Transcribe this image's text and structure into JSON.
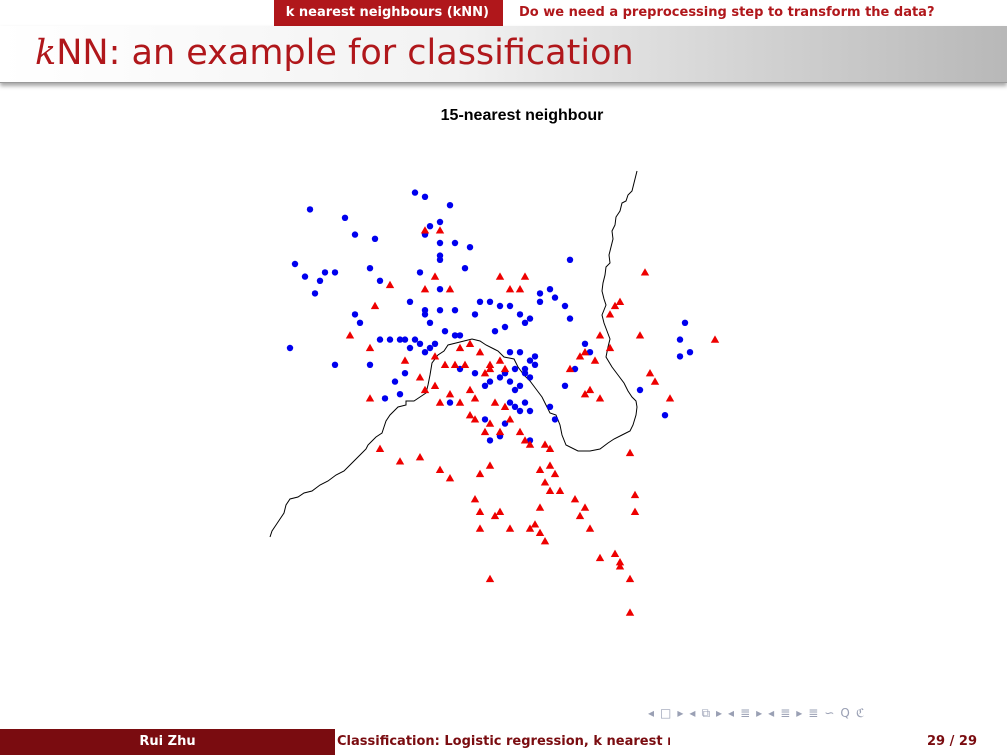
{
  "nav": {
    "section_left": "k nearest neighbours (kNN)",
    "section_right": "Do we need a preprocessing step to transform the data?"
  },
  "slide": {
    "title_math": "k",
    "title_rest": "NN: an example for classification"
  },
  "footer": {
    "author": "Rui Zhu",
    "short_title": "Classification: Logistic regression, k nearest neighbours and linear discriminant analysis",
    "page": "29 / 29"
  },
  "nav_symbols": [
    "◂",
    "□",
    "▸",
    "◂",
    "⧉",
    "▸",
    "◂",
    "≣",
    "▸",
    "◂",
    "≣",
    "▸",
    "≣",
    "∽",
    "Q",
    "ℭ"
  ],
  "colors": {
    "accent": "#b0171b",
    "footer_dark": "#7a0c10",
    "class_circle": "#0000ee",
    "class_triangle": "#ee0000",
    "boundary": "#000000"
  },
  "chart_data": {
    "type": "scatter",
    "title": "15-nearest neighbour",
    "xlabel": "",
    "ylabel": "",
    "axes_shown": false,
    "grid": false,
    "xlim": [
      0,
      100
    ],
    "ylim": [
      0,
      100
    ],
    "series": [
      {
        "marker": "circle",
        "color": "#0000ee",
        "points": [
          [
            8,
            93
          ],
          [
            15,
            91
          ],
          [
            17,
            87
          ],
          [
            21,
            86
          ],
          [
            5,
            80
          ],
          [
            7,
            77
          ],
          [
            10,
            76
          ],
          [
            11,
            78
          ],
          [
            9,
            73
          ],
          [
            13,
            78
          ],
          [
            20,
            79
          ],
          [
            22,
            76
          ],
          [
            4,
            60
          ],
          [
            13,
            56
          ],
          [
            29,
            97
          ],
          [
            31,
            96
          ],
          [
            36,
            94
          ],
          [
            32,
            89
          ],
          [
            34,
            90
          ],
          [
            31,
            87
          ],
          [
            37,
            85
          ],
          [
            40,
            84
          ],
          [
            34,
            85
          ],
          [
            34,
            82
          ],
          [
            30,
            78
          ],
          [
            34,
            81
          ],
          [
            39,
            79
          ],
          [
            34,
            74
          ],
          [
            28,
            71
          ],
          [
            31,
            69
          ],
          [
            31,
            68
          ],
          [
            32,
            66
          ],
          [
            34,
            69
          ],
          [
            37,
            69
          ],
          [
            41,
            68
          ],
          [
            35,
            64
          ],
          [
            37,
            63
          ],
          [
            38,
            63
          ],
          [
            27,
            62
          ],
          [
            29,
            62
          ],
          [
            30,
            61
          ],
          [
            28,
            60
          ],
          [
            31,
            59
          ],
          [
            32,
            60
          ],
          [
            33,
            61
          ],
          [
            26,
            62
          ],
          [
            24,
            62
          ],
          [
            22,
            62
          ],
          [
            18,
            66
          ],
          [
            17,
            68
          ],
          [
            20,
            56
          ],
          [
            42,
            71
          ],
          [
            44,
            71
          ],
          [
            46,
            70
          ],
          [
            50,
            68
          ],
          [
            48,
            70
          ],
          [
            54,
            71
          ],
          [
            54,
            73
          ],
          [
            56,
            74
          ],
          [
            59,
            70
          ],
          [
            57,
            72
          ],
          [
            52,
            67
          ],
          [
            51,
            66
          ],
          [
            47,
            65
          ],
          [
            45,
            64
          ],
          [
            48,
            59
          ],
          [
            50,
            59
          ],
          [
            52,
            57
          ],
          [
            53,
            58
          ],
          [
            51,
            55
          ],
          [
            53,
            56
          ],
          [
            51,
            54
          ],
          [
            49,
            55
          ],
          [
            47,
            54
          ],
          [
            46,
            53
          ],
          [
            48,
            52
          ],
          [
            52,
            53
          ],
          [
            49,
            50
          ],
          [
            50,
            51
          ],
          [
            38,
            55
          ],
          [
            41,
            54
          ],
          [
            43,
            51
          ],
          [
            44,
            52
          ],
          [
            48,
            47
          ],
          [
            49,
            46
          ],
          [
            50,
            45
          ],
          [
            51,
            47
          ],
          [
            52,
            45
          ],
          [
            56,
            46
          ],
          [
            59,
            51
          ],
          [
            61,
            55
          ],
          [
            64,
            59
          ],
          [
            60,
            67
          ],
          [
            60,
            81
          ],
          [
            36,
            47
          ],
          [
            47,
            42
          ],
          [
            52,
            38
          ],
          [
            57,
            43
          ],
          [
            74,
            50
          ],
          [
            79,
            44
          ],
          [
            83,
            66
          ],
          [
            82,
            62
          ],
          [
            82,
            58
          ],
          [
            84,
            59
          ],
          [
            44,
            38
          ],
          [
            46,
            39
          ],
          [
            25,
            52
          ],
          [
            27,
            54
          ],
          [
            23,
            48
          ],
          [
            43,
            43
          ],
          [
            26,
            49
          ],
          [
            63,
            61
          ]
        ]
      },
      {
        "marker": "triangle",
        "color": "#ee0000",
        "points": [
          [
            31,
            88
          ],
          [
            34,
            88
          ],
          [
            24,
            75
          ],
          [
            33,
            77
          ],
          [
            31,
            74
          ],
          [
            36,
            74
          ],
          [
            48,
            74
          ],
          [
            50,
            74
          ],
          [
            46,
            77
          ],
          [
            51,
            77
          ],
          [
            21,
            70
          ],
          [
            16,
            63
          ],
          [
            20,
            60
          ],
          [
            27,
            57
          ],
          [
            33,
            58
          ],
          [
            38,
            60
          ],
          [
            40,
            61
          ],
          [
            37,
            56
          ],
          [
            35,
            56
          ],
          [
            33,
            51
          ],
          [
            34,
            47
          ],
          [
            30,
            53
          ],
          [
            36,
            49
          ],
          [
            31,
            50
          ],
          [
            39,
            56
          ],
          [
            42,
            59
          ],
          [
            44,
            55
          ],
          [
            44,
            56
          ],
          [
            43,
            54
          ],
          [
            40,
            50
          ],
          [
            41,
            48
          ],
          [
            38,
            47
          ],
          [
            40,
            44
          ],
          [
            41,
            43
          ],
          [
            43,
            40
          ],
          [
            44,
            42
          ],
          [
            46,
            40
          ],
          [
            48,
            43
          ],
          [
            47,
            46
          ],
          [
            45,
            47
          ],
          [
            50,
            40
          ],
          [
            51,
            38
          ],
          [
            52,
            37
          ],
          [
            55,
            37
          ],
          [
            56,
            36
          ],
          [
            56,
            32
          ],
          [
            54,
            31
          ],
          [
            57,
            30
          ],
          [
            55,
            28
          ],
          [
            58,
            26
          ],
          [
            20,
            48
          ],
          [
            22,
            36
          ],
          [
            30,
            34
          ],
          [
            26,
            33
          ],
          [
            34,
            31
          ],
          [
            36,
            29
          ],
          [
            44,
            32
          ],
          [
            42,
            30
          ],
          [
            41,
            24
          ],
          [
            42,
            21
          ],
          [
            45,
            20
          ],
          [
            46,
            21
          ],
          [
            42,
            17
          ],
          [
            48,
            17
          ],
          [
            52,
            17
          ],
          [
            53,
            18
          ],
          [
            54,
            16
          ],
          [
            55,
            14
          ],
          [
            54,
            22
          ],
          [
            56,
            26
          ],
          [
            61,
            24
          ],
          [
            63,
            22
          ],
          [
            62,
            20
          ],
          [
            64,
            17
          ],
          [
            66,
            10
          ],
          [
            69,
            11
          ],
          [
            70,
            8
          ],
          [
            70,
            9
          ],
          [
            72,
            5
          ],
          [
            72,
            -3
          ],
          [
            44,
            5
          ],
          [
            60,
            55
          ],
          [
            62,
            58
          ],
          [
            63,
            59
          ],
          [
            65,
            57
          ],
          [
            66,
            63
          ],
          [
            68,
            60
          ],
          [
            68,
            68
          ],
          [
            69,
            70
          ],
          [
            70,
            71
          ],
          [
            74,
            63
          ],
          [
            75,
            78
          ],
          [
            63,
            49
          ],
          [
            64,
            50
          ],
          [
            66,
            48
          ],
          [
            76,
            54
          ],
          [
            77,
            52
          ],
          [
            80,
            48
          ],
          [
            89,
            62
          ],
          [
            72,
            35
          ],
          [
            73,
            25
          ],
          [
            73,
            21
          ],
          [
            46,
            57
          ],
          [
            47,
            55
          ]
        ]
      }
    ]
  }
}
